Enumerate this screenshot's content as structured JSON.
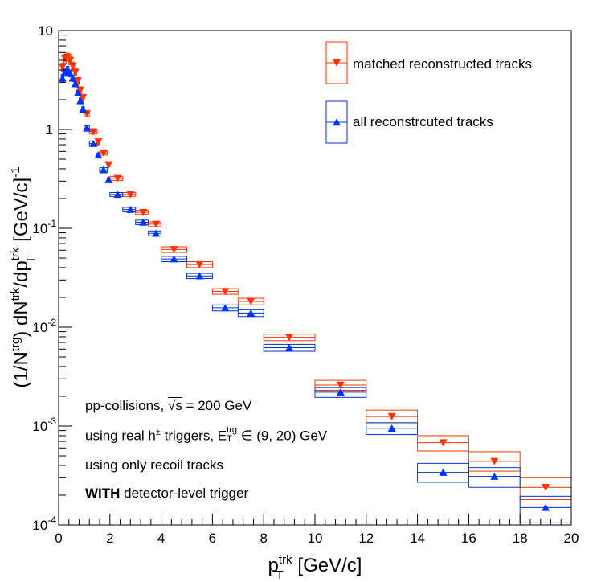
{
  "chart_data": {
    "type": "scatter",
    "title": "",
    "xlabel": "p_T^trk [GeV/c]",
    "ylabel": "(1/N^trg) dN^trk/dp_T^trk [GeV/c]^-1",
    "xlim": [
      0,
      20
    ],
    "ylim": [
      0.0001,
      10
    ],
    "yscale": "log",
    "xticks": [
      "0",
      "2",
      "4",
      "6",
      "8",
      "10",
      "12",
      "14",
      "16",
      "18",
      "20"
    ],
    "yticks": [
      "10",
      "1",
      "10^-1",
      "10^-2",
      "10^-3",
      "10^-4"
    ],
    "legend_position": "top-right",
    "series": [
      {
        "name": "matched reconstructed tracks",
        "color": "#ff3300",
        "box_color": "#ff3300",
        "marker": "triangle-down",
        "points": [
          {
            "x": 0.15,
            "y": 4.3,
            "xl": 0.1,
            "xh": 0.2,
            "yl": 3.9,
            "yh": 4.7
          },
          {
            "x": 0.25,
            "y": 5.2,
            "xl": 0.2,
            "xh": 0.3,
            "yl": 4.7,
            "yh": 5.7
          },
          {
            "x": 0.35,
            "y": 5.4,
            "xl": 0.3,
            "xh": 0.4,
            "yl": 4.9,
            "yh": 5.9
          },
          {
            "x": 0.45,
            "y": 5.0,
            "xl": 0.4,
            "xh": 0.5,
            "yl": 4.5,
            "yh": 5.5
          },
          {
            "x": 0.55,
            "y": 4.4,
            "xl": 0.5,
            "xh": 0.6,
            "yl": 4.0,
            "yh": 4.8
          },
          {
            "x": 0.65,
            "y": 3.8,
            "xl": 0.6,
            "xh": 0.7,
            "yl": 3.5,
            "yh": 4.1
          },
          {
            "x": 0.75,
            "y": 3.1,
            "xl": 0.7,
            "xh": 0.8,
            "yl": 2.85,
            "yh": 3.35
          },
          {
            "x": 0.85,
            "y": 2.5,
            "xl": 0.8,
            "xh": 0.9,
            "yl": 2.3,
            "yh": 2.7
          },
          {
            "x": 0.95,
            "y": 2.1,
            "xl": 0.9,
            "xh": 1.0,
            "yl": 1.95,
            "yh": 2.25
          },
          {
            "x": 1.1,
            "y": 1.45,
            "xl": 1.0,
            "xh": 1.2,
            "yl": 1.35,
            "yh": 1.55
          },
          {
            "x": 1.35,
            "y": 0.95,
            "xl": 1.2,
            "xh": 1.5,
            "yl": 0.9,
            "yh": 1.0
          },
          {
            "x": 1.55,
            "y": 0.75,
            "xl": 1.5,
            "xh": 1.6,
            "yl": 0.7,
            "yh": 0.8
          },
          {
            "x": 1.75,
            "y": 0.58,
            "xl": 1.6,
            "xh": 1.9,
            "yl": 0.55,
            "yh": 0.61
          },
          {
            "x": 1.95,
            "y": 0.44,
            "xl": 1.9,
            "xh": 2.0,
            "yl": 0.42,
            "yh": 0.46
          },
          {
            "x": 2.3,
            "y": 0.32,
            "xl": 2.0,
            "xh": 2.5,
            "yl": 0.305,
            "yh": 0.335
          },
          {
            "x": 2.8,
            "y": 0.22,
            "xl": 2.5,
            "xh": 3.0,
            "yl": 0.21,
            "yh": 0.23
          },
          {
            "x": 3.3,
            "y": 0.145,
            "xl": 3.0,
            "xh": 3.5,
            "yl": 0.138,
            "yh": 0.152
          },
          {
            "x": 3.8,
            "y": 0.11,
            "xl": 3.5,
            "xh": 4.0,
            "yl": 0.104,
            "yh": 0.116
          },
          {
            "x": 4.5,
            "y": 0.061,
            "xl": 4.0,
            "xh": 5.0,
            "yl": 0.057,
            "yh": 0.065
          },
          {
            "x": 5.5,
            "y": 0.043,
            "xl": 5.0,
            "xh": 6.0,
            "yl": 0.04,
            "yh": 0.046
          },
          {
            "x": 6.5,
            "y": 0.023,
            "xl": 6.0,
            "xh": 7.0,
            "yl": 0.0215,
            "yh": 0.0245
          },
          {
            "x": 7.5,
            "y": 0.0182,
            "xl": 7.0,
            "xh": 8.0,
            "yl": 0.0168,
            "yh": 0.0196
          },
          {
            "x": 9.0,
            "y": 0.0079,
            "xl": 8.0,
            "xh": 10.0,
            "yl": 0.0073,
            "yh": 0.0085
          },
          {
            "x": 11.0,
            "y": 0.0026,
            "xl": 10.0,
            "xh": 12.0,
            "yl": 0.0023,
            "yh": 0.0029
          },
          {
            "x": 13.0,
            "y": 0.00125,
            "xl": 12.0,
            "xh": 14.0,
            "yl": 0.00108,
            "yh": 0.00145
          },
          {
            "x": 15.0,
            "y": 0.00068,
            "xl": 14.0,
            "xh": 16.0,
            "yl": 0.00056,
            "yh": 0.0008
          },
          {
            "x": 17.0,
            "y": 0.00044,
            "xl": 16.0,
            "xh": 18.0,
            "yl": 0.00035,
            "yh": 0.00055
          },
          {
            "x": 19.0,
            "y": 0.00024,
            "xl": 18.0,
            "xh": 20.0,
            "yl": 0.00018,
            "yh": 0.0003
          }
        ]
      },
      {
        "name": "all reconstrcuted tracks",
        "color": "#0033ff",
        "box_color": "#0033cc",
        "marker": "triangle-up",
        "points": [
          {
            "x": 0.15,
            "y": 3.3,
            "xl": 0.1,
            "xh": 0.2,
            "yl": 3.0,
            "yh": 3.6
          },
          {
            "x": 0.25,
            "y": 3.8,
            "xl": 0.2,
            "xh": 0.3,
            "yl": 3.45,
            "yh": 4.15
          },
          {
            "x": 0.35,
            "y": 4.0,
            "xl": 0.3,
            "xh": 0.4,
            "yl": 3.65,
            "yh": 4.35
          },
          {
            "x": 0.45,
            "y": 3.7,
            "xl": 0.4,
            "xh": 0.5,
            "yl": 3.4,
            "yh": 4.0
          },
          {
            "x": 0.55,
            "y": 3.3,
            "xl": 0.5,
            "xh": 0.6,
            "yl": 3.05,
            "yh": 3.55
          },
          {
            "x": 0.65,
            "y": 2.9,
            "xl": 0.6,
            "xh": 0.7,
            "yl": 2.7,
            "yh": 3.1
          },
          {
            "x": 0.75,
            "y": 2.35,
            "xl": 0.7,
            "xh": 0.8,
            "yl": 2.2,
            "yh": 2.5
          },
          {
            "x": 0.85,
            "y": 1.95,
            "xl": 0.8,
            "xh": 0.9,
            "yl": 1.82,
            "yh": 2.08
          },
          {
            "x": 0.95,
            "y": 1.6,
            "xl": 0.9,
            "xh": 1.0,
            "yl": 1.5,
            "yh": 1.7
          },
          {
            "x": 1.1,
            "y": 1.03,
            "xl": 1.0,
            "xh": 1.2,
            "yl": 0.97,
            "yh": 1.09
          },
          {
            "x": 1.35,
            "y": 0.72,
            "xl": 1.2,
            "xh": 1.5,
            "yl": 0.68,
            "yh": 0.76
          },
          {
            "x": 1.55,
            "y": 0.55,
            "xl": 1.5,
            "xh": 1.6,
            "yl": 0.52,
            "yh": 0.58
          },
          {
            "x": 1.75,
            "y": 0.39,
            "xl": 1.6,
            "xh": 1.9,
            "yl": 0.37,
            "yh": 0.41
          },
          {
            "x": 1.95,
            "y": 0.31,
            "xl": 1.9,
            "xh": 2.0,
            "yl": 0.295,
            "yh": 0.325
          },
          {
            "x": 2.3,
            "y": 0.22,
            "xl": 2.0,
            "xh": 2.5,
            "yl": 0.21,
            "yh": 0.23
          },
          {
            "x": 2.8,
            "y": 0.155,
            "xl": 2.5,
            "xh": 3.0,
            "yl": 0.147,
            "yh": 0.163
          },
          {
            "x": 3.3,
            "y": 0.115,
            "xl": 3.0,
            "xh": 3.5,
            "yl": 0.109,
            "yh": 0.121
          },
          {
            "x": 3.8,
            "y": 0.089,
            "xl": 3.5,
            "xh": 4.0,
            "yl": 0.084,
            "yh": 0.094
          },
          {
            "x": 4.5,
            "y": 0.049,
            "xl": 4.0,
            "xh": 5.0,
            "yl": 0.046,
            "yh": 0.052
          },
          {
            "x": 5.5,
            "y": 0.033,
            "xl": 5.0,
            "xh": 6.0,
            "yl": 0.031,
            "yh": 0.035
          },
          {
            "x": 6.5,
            "y": 0.0157,
            "xl": 6.0,
            "xh": 7.0,
            "yl": 0.0146,
            "yh": 0.0168
          },
          {
            "x": 7.5,
            "y": 0.0139,
            "xl": 7.0,
            "xh": 8.0,
            "yl": 0.0128,
            "yh": 0.015
          },
          {
            "x": 9.0,
            "y": 0.0062,
            "xl": 8.0,
            "xh": 10.0,
            "yl": 0.0057,
            "yh": 0.0067
          },
          {
            "x": 11.0,
            "y": 0.0022,
            "xl": 10.0,
            "xh": 12.0,
            "yl": 0.00195,
            "yh": 0.00245
          },
          {
            "x": 13.0,
            "y": 0.00095,
            "xl": 12.0,
            "xh": 14.0,
            "yl": 0.00082,
            "yh": 0.00108
          },
          {
            "x": 15.0,
            "y": 0.00034,
            "xl": 14.0,
            "xh": 16.0,
            "yl": 0.00027,
            "yh": 0.00042
          },
          {
            "x": 17.0,
            "y": 0.00031,
            "xl": 16.0,
            "xh": 18.0,
            "yl": 0.00024,
            "yh": 0.00038
          },
          {
            "x": 19.0,
            "y": 0.00015,
            "xl": 18.0,
            "xh": 20.0,
            "yl": 0.000105,
            "yh": 0.000195
          }
        ]
      }
    ],
    "annotations": {
      "line1_pre": "pp-collisions, ",
      "line1_sqrt": "√s",
      "line1_post": " = 200 GeV",
      "line2_pre": "using real h",
      "line2_pm": "±",
      "line2_mid": " triggers, E",
      "line2_sup": "trg",
      "line2_sub": "T",
      "line2_post": " ∈ (9, 20) GeV",
      "line3": "using only recoil tracks",
      "line4_bold": "WITH",
      "line4_rest": " detector-level trigger"
    }
  }
}
